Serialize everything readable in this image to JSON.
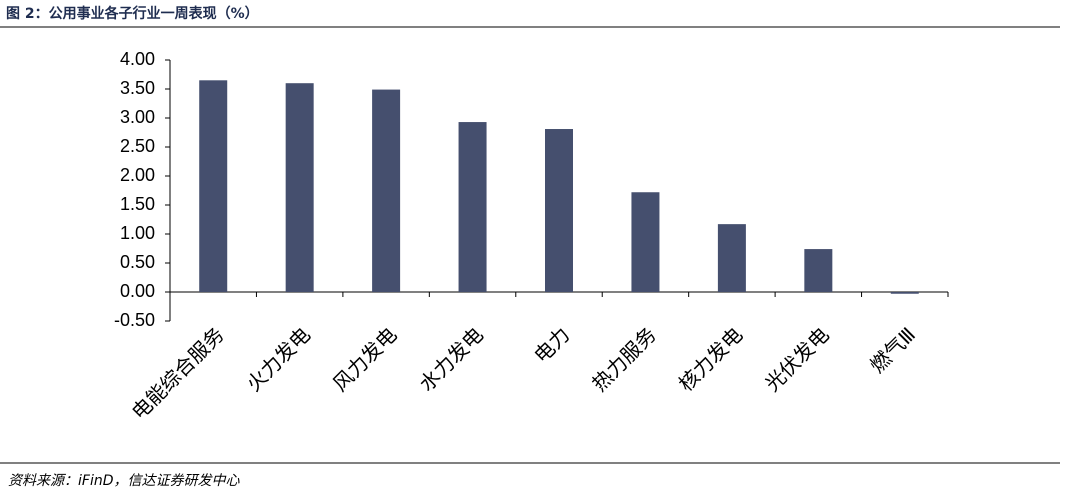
{
  "chart_data": {
    "type": "bar",
    "title": "图 2：公用事业各子行业一周表现（%）",
    "source": "资料来源：iFinD，信达证券研发中心",
    "categories": [
      "电能综合服务",
      "火力发电",
      "风力发电",
      "水力发电",
      "电力",
      "热力服务",
      "核力发电",
      "光伏发电",
      "燃气Ⅲ"
    ],
    "values": [
      3.65,
      3.6,
      3.49,
      2.93,
      2.81,
      1.72,
      1.17,
      0.74,
      -0.03
    ],
    "color": "#454f6e",
    "ylim": [
      -0.5,
      4.0
    ],
    "yticks": [
      {
        "value": -0.5,
        "label": "-0.50"
      },
      {
        "value": 0,
        "label": "0.00"
      },
      {
        "value": 0.5,
        "label": "0.50"
      },
      {
        "value": 1,
        "label": "1.00"
      },
      {
        "value": 1.5,
        "label": "1.50"
      },
      {
        "value": 2,
        "label": "2.00"
      },
      {
        "value": 2.5,
        "label": "2.50"
      },
      {
        "value": 3,
        "label": "3.00"
      },
      {
        "value": 3.5,
        "label": "3.50"
      },
      {
        "value": 4,
        "label": "4.00"
      }
    ],
    "grid": false
  }
}
